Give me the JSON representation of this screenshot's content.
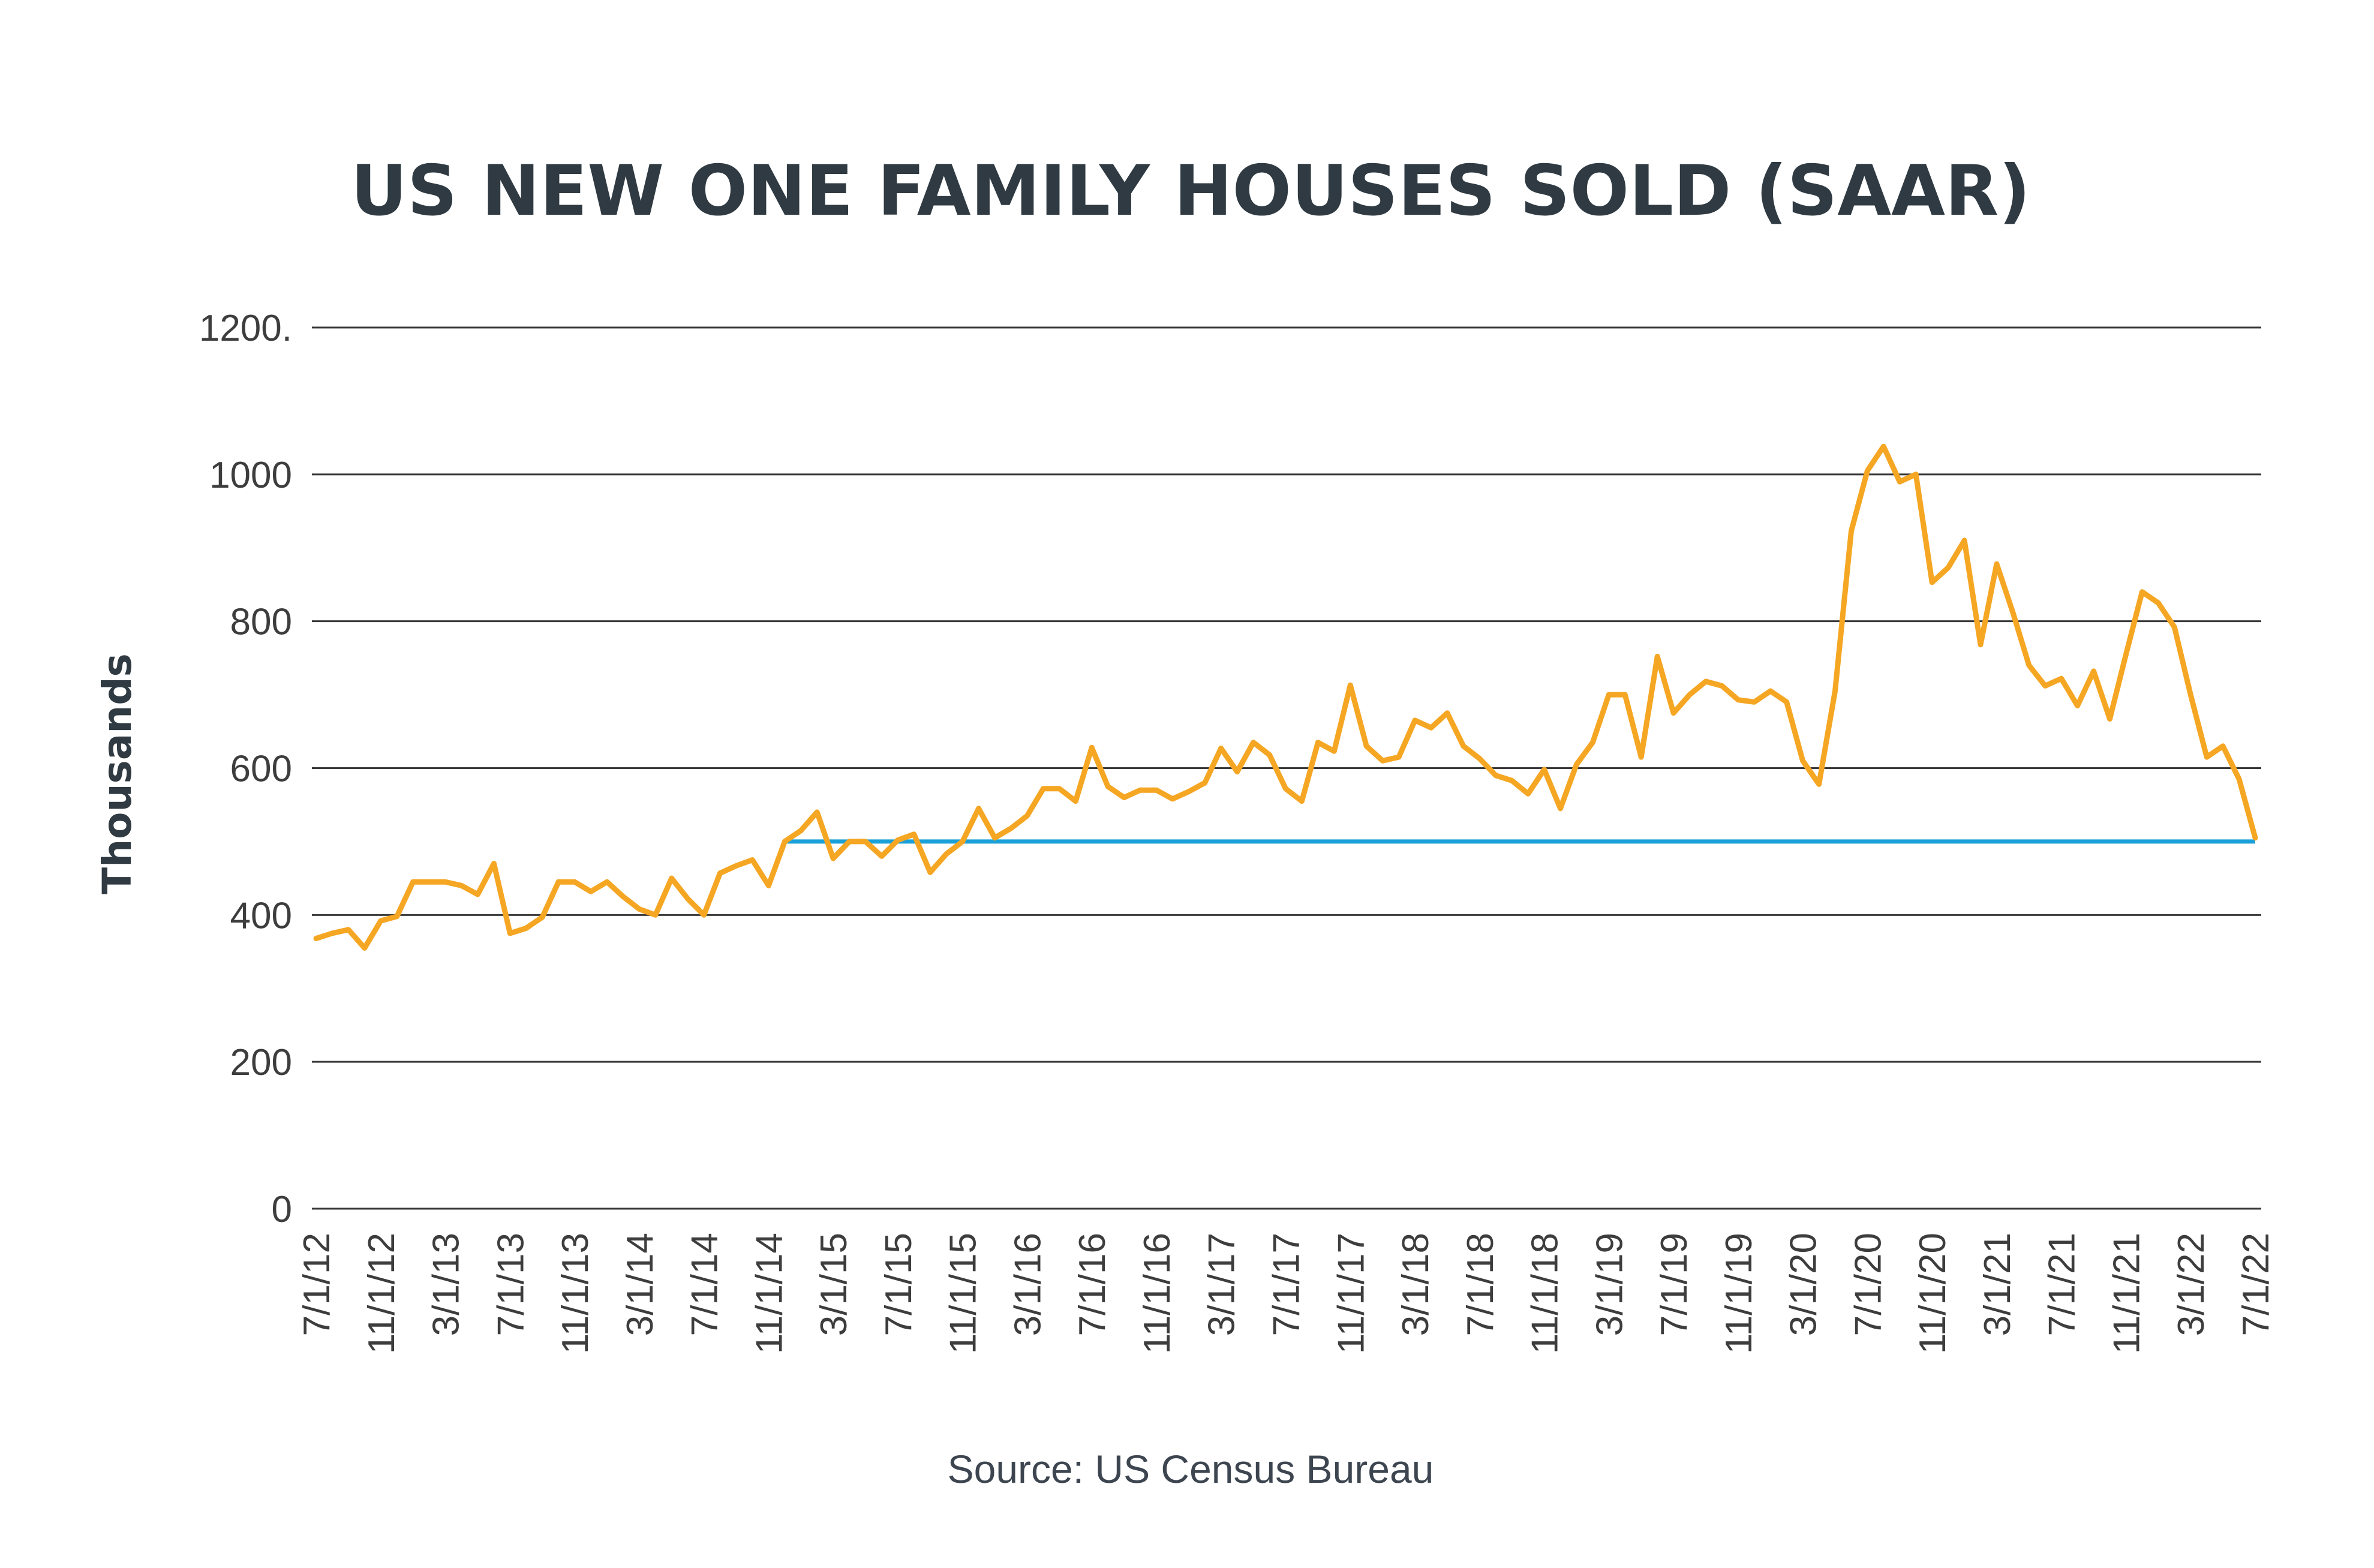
{
  "chart_data": {
    "type": "line",
    "title": "US NEW ONE FAMILY HOUSES SOLD (SAAR)",
    "ylabel": "Thousands",
    "xlabel": "",
    "source": "Source: US Census Bureau",
    "ylim": [
      0,
      1200
    ],
    "grid": true,
    "y_ticks": [
      {
        "value": 0,
        "label": "0"
      },
      {
        "value": 200,
        "label": "200"
      },
      {
        "value": 400,
        "label": "400"
      },
      {
        "value": 600,
        "label": "600"
      },
      {
        "value": 800,
        "label": "800"
      },
      {
        "value": 1000,
        "label": "1000"
      },
      {
        "value": 1200,
        "label": "1200."
      }
    ],
    "x_ticks": [
      "7/1/12",
      "11/1/12",
      "3/1/13",
      "7/1/13",
      "11/1/13",
      "3/1/14",
      "7/1/14",
      "11/1/14",
      "3/1/15",
      "7/1/15",
      "11/1/15",
      "3/1/16",
      "7/1/16",
      "11/1/16",
      "3/1/17",
      "7/1/17",
      "11/1/17",
      "3/1/18",
      "7/1/18",
      "11/1/18",
      "3/1/19",
      "7/1/19",
      "11/1/19",
      "3/1/20",
      "7/1/20",
      "11/1/20",
      "3/1/21",
      "7/1/21",
      "11/1/21",
      "3/1/22",
      "7/1/22"
    ],
    "colors": {
      "series": "#f5a623",
      "reference": "#1aa0d8",
      "grid": "#3a3a3a"
    },
    "series": [
      {
        "x_start": "7/1/12",
        "x_step": "1 month",
        "values": [
          368,
          375,
          380,
          355,
          392,
          398,
          445,
          445,
          445,
          440,
          428,
          470,
          375,
          382,
          397,
          445,
          445,
          432,
          445,
          425,
          408,
          400,
          450,
          422,
          400,
          457,
          467,
          475,
          440,
          500,
          515,
          540,
          477,
          500,
          500,
          480,
          502,
          510,
          458,
          483,
          500,
          545,
          505,
          518,
          535,
          572,
          572,
          555,
          628,
          575,
          560,
          570,
          570,
          558,
          568,
          580,
          627,
          595,
          635,
          618,
          572,
          555,
          635,
          623,
          713,
          630,
          610,
          615,
          665,
          655,
          675,
          630,
          613,
          590,
          583,
          565,
          598,
          545,
          605,
          635,
          700,
          700,
          615,
          752,
          675,
          700,
          718,
          712,
          693,
          690,
          705,
          690,
          610,
          578,
          705,
          923,
          1005,
          1038,
          990,
          1000,
          853,
          873,
          910,
          768,
          878,
          812,
          740,
          712,
          722,
          685,
          732,
          667,
          755,
          840,
          825,
          792,
          700,
          615,
          630,
          585,
          505
        ]
      },
      {
        "name": "",
        "x_start": "12/1/14",
        "x_end": "7/1/22",
        "constant_value": 500
      }
    ]
  }
}
